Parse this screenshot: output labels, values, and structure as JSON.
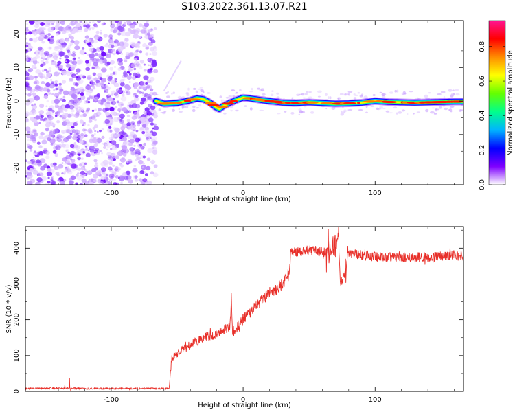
{
  "title": "S103.2022.361.13.07.R21",
  "chart_data": [
    {
      "type": "heatmap",
      "title": "S103.2022.361.13.07.R21",
      "xlabel": "Height of straight line (km)",
      "ylabel": "Frequency (Hz)",
      "xlim": [
        -165,
        167
      ],
      "ylim": [
        -25,
        24
      ],
      "xticks": [
        "-100",
        "0",
        "100"
      ],
      "yticks": [
        "-20",
        "-10",
        "0",
        "10",
        "20"
      ],
      "colorbar": {
        "label": "Normalized spectral amplitude",
        "range": [
          0,
          0.95
        ],
        "ticks": [
          "0.0",
          "0.2",
          "0.4",
          "0.6",
          "0.8"
        ],
        "colormap": [
          "#ffffff",
          "#7e00ff",
          "#0000ff",
          "#00b4ff",
          "#00ff8c",
          "#64ff00",
          "#ffff00",
          "#ff8c00",
          "#ff0000",
          "#ff1493"
        ]
      },
      "noise_region_x": [
        -165,
        -66
      ],
      "ridge_line": {
        "x": [
          -66,
          -60,
          -50,
          -40,
          -35,
          -30,
          -25,
          -20,
          -18,
          -15,
          -10,
          -5,
          0,
          5,
          10,
          15,
          20,
          30,
          40,
          50,
          60,
          70,
          80,
          90,
          100,
          110,
          120,
          130,
          140,
          150,
          160,
          167
        ],
        "y": [
          0.0,
          -0.8,
          -0.6,
          0.2,
          0.8,
          0.5,
          -0.5,
          -2.0,
          -2.4,
          -1.5,
          -0.5,
          0.3,
          1.0,
          0.8,
          0.5,
          0.2,
          0.0,
          -0.5,
          -0.6,
          -0.4,
          -0.6,
          -0.8,
          -0.7,
          -0.5,
          0.0,
          -0.3,
          -0.4,
          -0.5,
          -0.4,
          -0.3,
          -0.2,
          -0.2
        ]
      }
    },
    {
      "type": "line",
      "xlabel": "Height of straight line (km)",
      "ylabel": "SNR (10 * v/v)",
      "xlim": [
        -165,
        167
      ],
      "ylim": [
        0,
        460
      ],
      "xticks": [
        "-100",
        "0",
        "100"
      ],
      "yticks": [
        "0",
        "100",
        "200",
        "300",
        "400"
      ],
      "color": "#e8302a",
      "series": [
        {
          "x": [
            -165,
            -150,
            -120,
            -90,
            -60,
            -56,
            -55,
            -54,
            -50,
            -40,
            -30,
            -20,
            -10,
            -9,
            -8,
            0,
            10,
            20,
            25,
            30,
            35,
            36,
            40,
            50,
            60,
            70,
            72,
            74,
            80,
            90,
            100,
            120,
            140,
            160,
            167
          ],
          "y": [
            8,
            9,
            8,
            8,
            8,
            9,
            60,
            95,
            105,
            130,
            150,
            160,
            180,
            270,
            165,
            200,
            240,
            275,
            285,
            300,
            330,
            385,
            390,
            395,
            390,
            385,
            440,
            280,
            385,
            380,
            375,
            375,
            375,
            380,
            378
          ]
        }
      ]
    }
  ]
}
